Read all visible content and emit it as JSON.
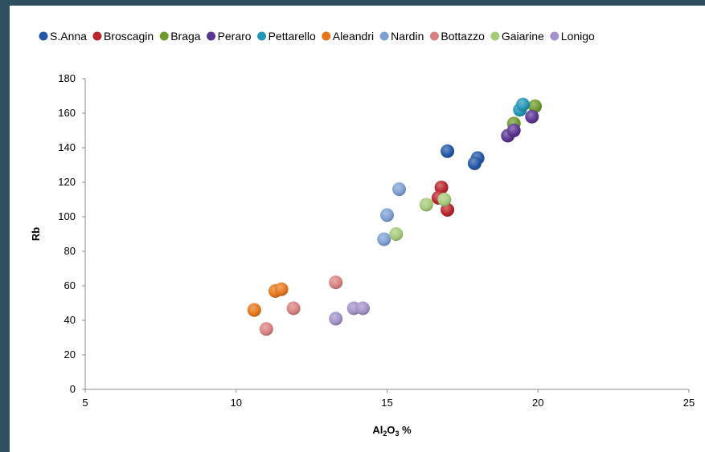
{
  "chart_data": {
    "type": "scatter",
    "xlabel": {
      "base": "Al",
      "sub1": "2",
      "mid": "O",
      "sub2": "3",
      "suffix": " %"
    },
    "ylabel": "Rb",
    "xlim": [
      5,
      25
    ],
    "ylim": [
      0,
      180
    ],
    "xticks": [
      5,
      10,
      15,
      20,
      25
    ],
    "yticks": [
      0,
      20,
      40,
      60,
      80,
      100,
      120,
      140,
      160,
      180
    ],
    "grid": false,
    "legend_position": "top",
    "series": [
      {
        "name": "S.Anna",
        "color": "#2458a6",
        "points": [
          [
            17.0,
            138
          ],
          [
            18.0,
            134
          ],
          [
            17.9,
            131
          ]
        ]
      },
      {
        "name": "Broscagin",
        "color": "#b8252c",
        "points": [
          [
            16.8,
            117
          ],
          [
            16.7,
            111
          ],
          [
            17.0,
            104
          ]
        ]
      },
      {
        "name": "Braga",
        "color": "#6f9a2e",
        "points": [
          [
            19.2,
            154
          ],
          [
            19.9,
            164
          ]
        ]
      },
      {
        "name": "Peraro",
        "color": "#5b3592",
        "points": [
          [
            19.0,
            147
          ],
          [
            19.2,
            150
          ],
          [
            19.8,
            158
          ]
        ]
      },
      {
        "name": "Pettarello",
        "color": "#2497b7",
        "points": [
          [
            19.4,
            162
          ],
          [
            19.5,
            165
          ]
        ]
      },
      {
        "name": "Aleandri",
        "color": "#e6761c",
        "points": [
          [
            10.6,
            46
          ],
          [
            11.3,
            57
          ],
          [
            11.5,
            58
          ]
        ]
      },
      {
        "name": "Nardin",
        "color": "#7f9fd3",
        "points": [
          [
            15.4,
            116
          ],
          [
            15.0,
            101
          ],
          [
            14.9,
            87
          ]
        ]
      },
      {
        "name": "Bottazzo",
        "color": "#d98181",
        "points": [
          [
            13.3,
            62
          ],
          [
            11.9,
            47
          ],
          [
            11.0,
            35
          ]
        ]
      },
      {
        "name": "Gaiarine",
        "color": "#a5ca79",
        "points": [
          [
            16.3,
            107
          ],
          [
            16.9,
            110
          ],
          [
            15.3,
            90
          ]
        ]
      },
      {
        "name": "Lonigo",
        "color": "#a392c8",
        "points": [
          [
            13.3,
            41
          ],
          [
            13.9,
            47
          ],
          [
            14.2,
            47
          ]
        ]
      }
    ]
  }
}
